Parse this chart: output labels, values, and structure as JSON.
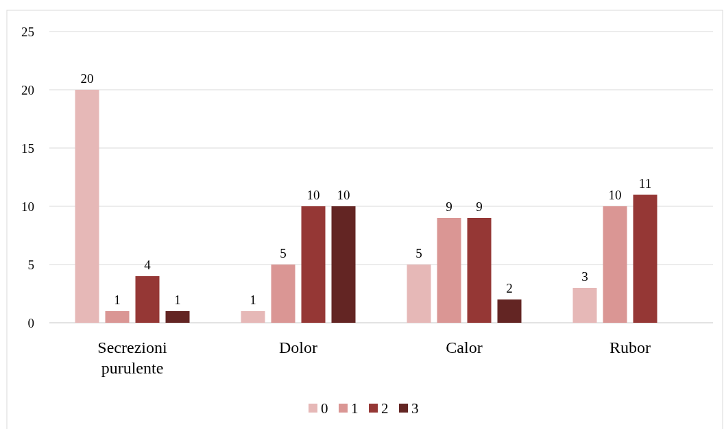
{
  "chart_data": {
    "type": "bar",
    "categories": [
      "Secrezioni purulente",
      "Dolor",
      "Calor",
      "Rubor"
    ],
    "series": [
      {
        "name": "0",
        "color": "#e6b8b7",
        "values": [
          20,
          1,
          5,
          3
        ]
      },
      {
        "name": "1",
        "color": "#da9694",
        "values": [
          1,
          5,
          9,
          10
        ]
      },
      {
        "name": "2",
        "color": "#953735",
        "values": [
          4,
          10,
          9,
          11
        ]
      },
      {
        "name": "3",
        "color": "#632523",
        "values": [
          1,
          10,
          2,
          null
        ]
      }
    ],
    "ylim": [
      0,
      25
    ],
    "yticks": [
      0,
      5,
      10,
      15,
      20,
      25
    ],
    "grid": "y",
    "legend": "bottom",
    "data_labels": true
  }
}
